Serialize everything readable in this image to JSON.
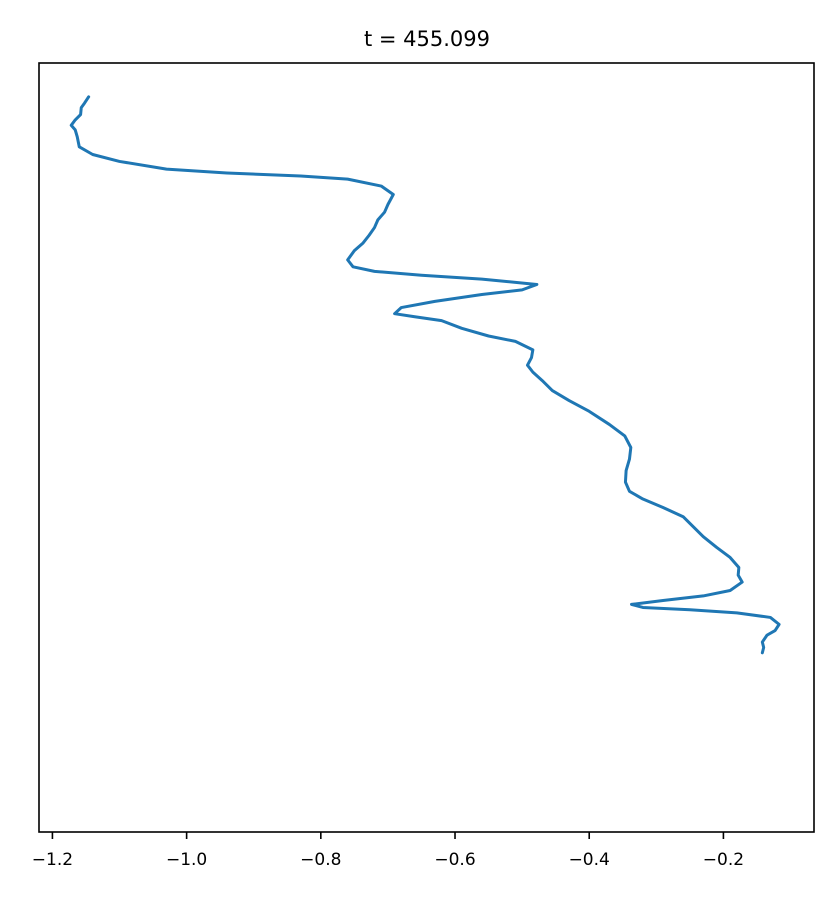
{
  "chart_data": {
    "type": "line",
    "title": "t = 455.099",
    "xlabel": "",
    "ylabel": "",
    "xlim": [
      -1.22,
      -0.065
    ],
    "ylim": [
      0,
      1
    ],
    "x_ticks": [
      -1.2,
      -1.0,
      -0.8,
      -0.6,
      -0.4,
      -0.2
    ],
    "x_tick_labels": [
      "−1.2",
      "−1.0",
      "−0.8",
      "−0.6",
      "−0.4",
      "−0.2"
    ],
    "y_ticks_visible": false,
    "grid": false,
    "series": [
      {
        "color": "#1f77b4",
        "points": [
          [
            -1.146,
            0.956
          ],
          [
            -1.152,
            0.948
          ],
          [
            -1.157,
            0.942
          ],
          [
            -1.158,
            0.933
          ],
          [
            -1.166,
            0.926
          ],
          [
            -1.172,
            0.919
          ],
          [
            -1.166,
            0.913
          ],
          [
            -1.163,
            0.904
          ],
          [
            -1.16,
            0.891
          ],
          [
            -1.14,
            0.881
          ],
          [
            -1.1,
            0.872
          ],
          [
            -1.03,
            0.862
          ],
          [
            -0.94,
            0.857
          ],
          [
            -0.83,
            0.853
          ],
          [
            -0.76,
            0.849
          ],
          [
            -0.71,
            0.84
          ],
          [
            -0.692,
            0.829
          ],
          [
            -0.7,
            0.816
          ],
          [
            -0.705,
            0.806
          ],
          [
            -0.715,
            0.796
          ],
          [
            -0.72,
            0.786
          ],
          [
            -0.728,
            0.776
          ],
          [
            -0.737,
            0.766
          ],
          [
            -0.75,
            0.756
          ],
          [
            -0.76,
            0.744
          ],
          [
            -0.752,
            0.735
          ],
          [
            -0.72,
            0.729
          ],
          [
            -0.65,
            0.724
          ],
          [
            -0.56,
            0.719
          ],
          [
            -0.478,
            0.712
          ],
          [
            -0.5,
            0.705
          ],
          [
            -0.56,
            0.699
          ],
          [
            -0.63,
            0.69
          ],
          [
            -0.68,
            0.682
          ],
          [
            -0.69,
            0.674
          ],
          [
            -0.66,
            0.67
          ],
          [
            -0.62,
            0.665
          ],
          [
            -0.59,
            0.655
          ],
          [
            -0.55,
            0.645
          ],
          [
            -0.51,
            0.638
          ],
          [
            -0.484,
            0.627
          ],
          [
            -0.486,
            0.617
          ],
          [
            -0.492,
            0.607
          ],
          [
            -0.484,
            0.598
          ],
          [
            -0.47,
            0.587
          ],
          [
            -0.455,
            0.574
          ],
          [
            -0.43,
            0.561
          ],
          [
            -0.4,
            0.547
          ],
          [
            -0.37,
            0.53
          ],
          [
            -0.347,
            0.515
          ],
          [
            -0.338,
            0.5
          ],
          [
            -0.34,
            0.485
          ],
          [
            -0.345,
            0.47
          ],
          [
            -0.346,
            0.455
          ],
          [
            -0.34,
            0.443
          ],
          [
            -0.32,
            0.433
          ],
          [
            -0.29,
            0.422
          ],
          [
            -0.26,
            0.41
          ],
          [
            -0.245,
            0.397
          ],
          [
            -0.23,
            0.384
          ],
          [
            -0.21,
            0.37
          ],
          [
            -0.19,
            0.357
          ],
          [
            -0.177,
            0.344
          ],
          [
            -0.178,
            0.334
          ],
          [
            -0.172,
            0.325
          ],
          [
            -0.19,
            0.314
          ],
          [
            -0.23,
            0.307
          ],
          [
            -0.29,
            0.301
          ],
          [
            -0.337,
            0.296
          ],
          [
            -0.32,
            0.292
          ],
          [
            -0.25,
            0.289
          ],
          [
            -0.18,
            0.285
          ],
          [
            -0.13,
            0.279
          ],
          [
            -0.117,
            0.27
          ],
          [
            -0.123,
            0.262
          ],
          [
            -0.135,
            0.256
          ],
          [
            -0.142,
            0.247
          ],
          [
            -0.14,
            0.24
          ],
          [
            -0.142,
            0.233
          ]
        ]
      }
    ]
  }
}
